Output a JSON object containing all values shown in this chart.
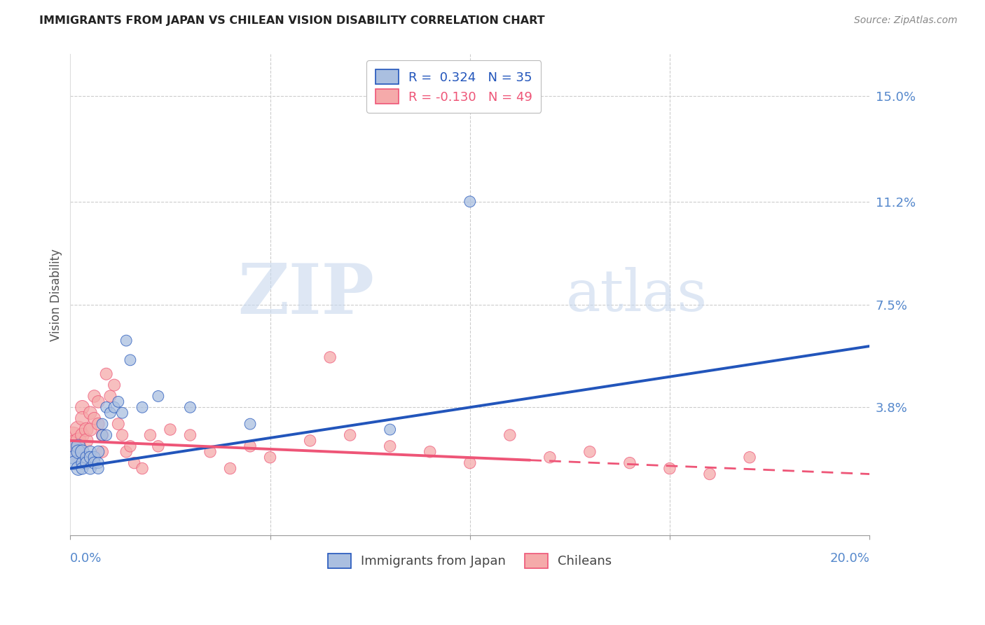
{
  "title": "IMMIGRANTS FROM JAPAN VS CHILEAN VISION DISABILITY CORRELATION CHART",
  "source": "Source: ZipAtlas.com",
  "ylabel": "Vision Disability",
  "ytick_labels": [
    "15.0%",
    "11.2%",
    "7.5%",
    "3.8%"
  ],
  "ytick_values": [
    0.15,
    0.112,
    0.075,
    0.038
  ],
  "xlim": [
    0.0,
    0.2
  ],
  "ylim": [
    -0.008,
    0.165
  ],
  "legend_label1": "Immigrants from Japan",
  "legend_label2": "Chileans",
  "color_blue": "#AABFE0",
  "color_pink": "#F5AAAA",
  "line_blue": "#2255BB",
  "line_pink": "#EE5577",
  "watermark_zip": "ZIP",
  "watermark_atlas": "atlas",
  "japan_x": [
    0.0005,
    0.001,
    0.001,
    0.002,
    0.002,
    0.002,
    0.003,
    0.003,
    0.003,
    0.004,
    0.004,
    0.005,
    0.005,
    0.005,
    0.006,
    0.006,
    0.007,
    0.007,
    0.007,
    0.008,
    0.008,
    0.009,
    0.009,
    0.01,
    0.011,
    0.012,
    0.013,
    0.014,
    0.015,
    0.018,
    0.022,
    0.03,
    0.045,
    0.08,
    0.1
  ],
  "japan_y": [
    0.022,
    0.02,
    0.018,
    0.024,
    0.022,
    0.016,
    0.022,
    0.018,
    0.016,
    0.02,
    0.018,
    0.022,
    0.02,
    0.016,
    0.02,
    0.018,
    0.022,
    0.018,
    0.016,
    0.028,
    0.032,
    0.038,
    0.028,
    0.036,
    0.038,
    0.04,
    0.036,
    0.062,
    0.055,
    0.038,
    0.042,
    0.038,
    0.032,
    0.03,
    0.112
  ],
  "japan_size": [
    600,
    200,
    200,
    200,
    200,
    200,
    200,
    150,
    150,
    150,
    150,
    150,
    150,
    150,
    150,
    150,
    150,
    130,
    130,
    130,
    130,
    130,
    130,
    130,
    130,
    130,
    130,
    130,
    130,
    130,
    130,
    130,
    130,
    130,
    130
  ],
  "chile_x": [
    0.0005,
    0.001,
    0.001,
    0.002,
    0.002,
    0.002,
    0.003,
    0.003,
    0.003,
    0.004,
    0.004,
    0.005,
    0.005,
    0.006,
    0.006,
    0.007,
    0.007,
    0.008,
    0.008,
    0.009,
    0.01,
    0.011,
    0.012,
    0.013,
    0.014,
    0.015,
    0.016,
    0.018,
    0.02,
    0.022,
    0.025,
    0.03,
    0.035,
    0.04,
    0.045,
    0.05,
    0.06,
    0.065,
    0.07,
    0.08,
    0.09,
    0.1,
    0.11,
    0.12,
    0.13,
    0.14,
    0.15,
    0.16,
    0.17
  ],
  "chile_y": [
    0.026,
    0.025,
    0.022,
    0.03,
    0.026,
    0.022,
    0.038,
    0.034,
    0.028,
    0.03,
    0.026,
    0.036,
    0.03,
    0.042,
    0.034,
    0.04,
    0.032,
    0.028,
    0.022,
    0.05,
    0.042,
    0.046,
    0.032,
    0.028,
    0.022,
    0.024,
    0.018,
    0.016,
    0.028,
    0.024,
    0.03,
    0.028,
    0.022,
    0.016,
    0.024,
    0.02,
    0.026,
    0.056,
    0.028,
    0.024,
    0.022,
    0.018,
    0.028,
    0.02,
    0.022,
    0.018,
    0.016,
    0.014,
    0.02
  ],
  "chile_size": [
    800,
    300,
    300,
    300,
    250,
    250,
    200,
    200,
    200,
    200,
    200,
    180,
    180,
    160,
    160,
    160,
    160,
    150,
    150,
    150,
    150,
    150,
    150,
    140,
    140,
    140,
    140,
    140,
    140,
    140,
    140,
    140,
    140,
    140,
    140,
    140,
    140,
    140,
    140,
    140,
    140,
    140,
    140,
    140,
    140,
    140,
    140,
    140,
    140
  ],
  "trend_japan_x0": 0.0,
  "trend_japan_y0": 0.016,
  "trend_japan_x1": 0.2,
  "trend_japan_y1": 0.06,
  "trend_chile_x0": 0.0,
  "trend_chile_y0": 0.026,
  "trend_chile_x1": 0.115,
  "trend_chile_y1": 0.019,
  "trend_chile_dash_x0": 0.115,
  "trend_chile_dash_y0": 0.019,
  "trend_chile_dash_x1": 0.2,
  "trend_chile_dash_y1": 0.014
}
